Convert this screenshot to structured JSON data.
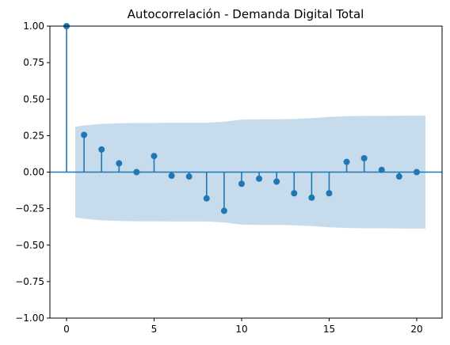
{
  "chart_data": {
    "type": "acf-stem",
    "title": "Autocorrelación - Demanda Digital Total",
    "xlabel": "",
    "ylabel": "",
    "xlim": [
      -0.95,
      21.45
    ],
    "ylim": [
      -1.0,
      1.0
    ],
    "xticks": [
      0,
      5,
      10,
      15,
      20
    ],
    "yticks": [
      -1.0,
      -0.75,
      -0.5,
      -0.25,
      0.0,
      0.25,
      0.5,
      0.75,
      1.0
    ],
    "ytick_labels": [
      "−1.00",
      "−0.75",
      "−0.50",
      "−0.25",
      "0.00",
      "0.25",
      "0.50",
      "0.75",
      "1.00"
    ],
    "xtick_labels": [
      "0",
      "5",
      "10",
      "15",
      "20"
    ],
    "lags": [
      0,
      1,
      2,
      3,
      4,
      5,
      6,
      7,
      8,
      9,
      10,
      11,
      12,
      13,
      14,
      15,
      16,
      17,
      18,
      19,
      20
    ],
    "values": [
      1.0,
      0.255,
      0.155,
      0.06,
      0.0,
      0.11,
      -0.025,
      -0.03,
      -0.18,
      -0.265,
      -0.08,
      -0.045,
      -0.065,
      -0.145,
      -0.175,
      -0.145,
      0.07,
      0.095,
      0.015,
      -0.03,
      0.0
    ],
    "confidence_band": {
      "x": [
        0.5,
        1,
        2,
        3,
        4,
        5,
        6,
        7,
        8,
        9,
        10,
        11,
        12,
        13,
        14,
        15,
        16,
        17,
        18,
        19,
        20,
        20.5
      ],
      "upper": [
        0.31,
        0.32,
        0.33,
        0.335,
        0.337,
        0.337,
        0.338,
        0.338,
        0.338,
        0.345,
        0.36,
        0.362,
        0.362,
        0.364,
        0.37,
        0.378,
        0.383,
        0.385,
        0.385,
        0.386,
        0.387,
        0.387
      ]
    },
    "grid": false,
    "colors": {
      "stem": "#1f77b4",
      "band": "#c6dbec",
      "axes": "#000000"
    }
  }
}
